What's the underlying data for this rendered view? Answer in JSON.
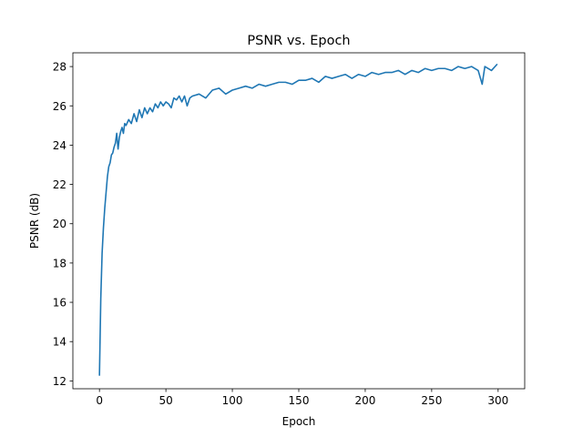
{
  "chart_data": {
    "type": "line",
    "title": "PSNR vs. Epoch",
    "xlabel": "Epoch",
    "ylabel": "PSNR (dB)",
    "xlim": [
      -20,
      320
    ],
    "ylim": [
      11.6,
      28.7
    ],
    "xticks": [
      0,
      50,
      100,
      150,
      200,
      250,
      300
    ],
    "yticks": [
      12,
      14,
      16,
      18,
      20,
      22,
      24,
      26,
      28
    ],
    "grid": false,
    "series": [
      {
        "color": "#1f77b4",
        "x": [
          0,
          1,
          2,
          3,
          4,
          5,
          6,
          7,
          8,
          9,
          10,
          11,
          12,
          13,
          14,
          15,
          16,
          17,
          18,
          19,
          20,
          22,
          24,
          26,
          28,
          30,
          32,
          34,
          36,
          38,
          40,
          42,
          44,
          46,
          48,
          50,
          52,
          54,
          56,
          58,
          60,
          62,
          64,
          66,
          68,
          70,
          75,
          80,
          85,
          90,
          95,
          100,
          105,
          110,
          115,
          120,
          125,
          130,
          135,
          140,
          145,
          150,
          155,
          160,
          165,
          170,
          175,
          180,
          185,
          190,
          195,
          200,
          205,
          210,
          215,
          220,
          225,
          230,
          235,
          240,
          245,
          250,
          255,
          260,
          265,
          270,
          275,
          280,
          285,
          288,
          290,
          295,
          299
        ],
        "y": [
          12.3,
          16.2,
          18.5,
          19.8,
          20.8,
          21.6,
          22.4,
          22.9,
          23.1,
          23.5,
          23.6,
          23.9,
          24.1,
          24.6,
          23.8,
          24.4,
          24.7,
          24.9,
          24.6,
          25.1,
          25.0,
          25.3,
          25.1,
          25.6,
          25.2,
          25.8,
          25.4,
          25.9,
          25.6,
          25.9,
          25.7,
          26.1,
          25.9,
          26.2,
          26.0,
          26.2,
          26.1,
          25.9,
          26.4,
          26.3,
          26.5,
          26.2,
          26.5,
          26.0,
          26.4,
          26.5,
          26.6,
          26.4,
          26.8,
          26.9,
          26.6,
          26.8,
          26.9,
          27.0,
          26.9,
          27.1,
          27.0,
          27.1,
          27.2,
          27.2,
          27.1,
          27.3,
          27.3,
          27.4,
          27.2,
          27.5,
          27.4,
          27.5,
          27.6,
          27.4,
          27.6,
          27.5,
          27.7,
          27.6,
          27.7,
          27.7,
          27.8,
          27.6,
          27.8,
          27.7,
          27.9,
          27.8,
          27.9,
          27.9,
          27.8,
          28.0,
          27.9,
          28.0,
          27.8,
          27.1,
          28.0,
          27.8,
          28.1
        ]
      }
    ]
  }
}
